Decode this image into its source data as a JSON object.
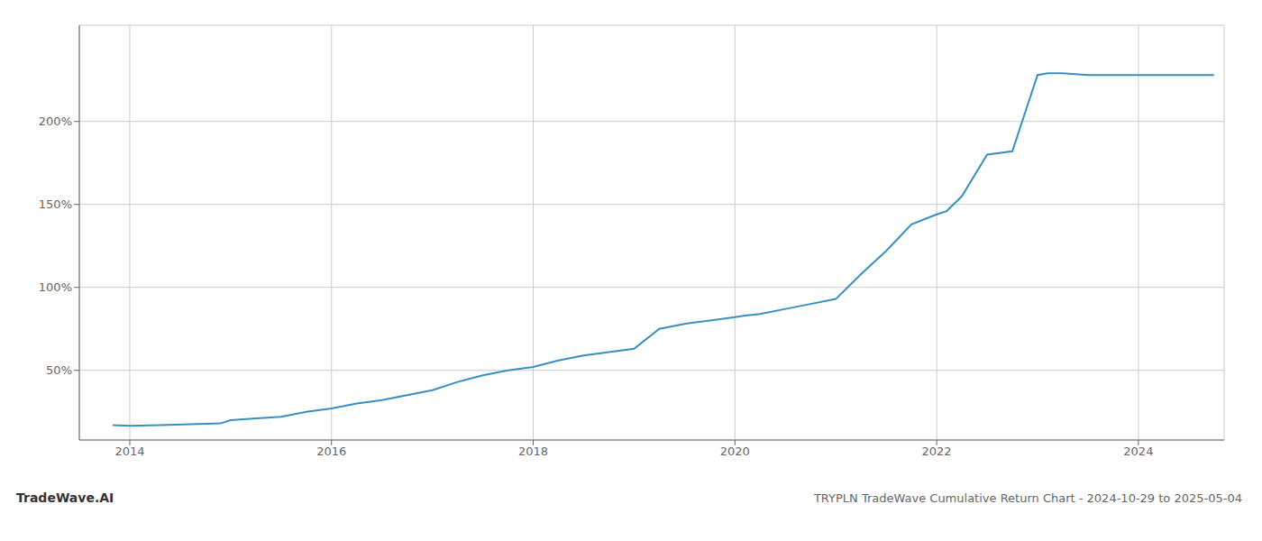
{
  "chart_data": {
    "type": "line",
    "title": "TRYPLN TradeWave Cumulative Return Chart - 2024-10-29 to 2025-05-04",
    "annotations": [
      "TradeWave.AI"
    ],
    "color": "#3a8fc0",
    "grid": true,
    "xlim": [
      2013.5,
      2024.85
    ],
    "ylim": [
      8,
      258
    ],
    "xticks": [
      2014,
      2016,
      2018,
      2020,
      2022,
      2024
    ],
    "yticks": [
      {
        "value": 50,
        "label": "50%"
      },
      {
        "value": 100,
        "label": "100%"
      },
      {
        "value": 150,
        "label": "150%"
      },
      {
        "value": 200,
        "label": "200%"
      }
    ],
    "x": [
      2013.83,
      2014.0,
      2014.3,
      2014.6,
      2014.9,
      2015.0,
      2015.25,
      2015.5,
      2015.75,
      2016.0,
      2016.25,
      2016.5,
      2016.75,
      2017.0,
      2017.25,
      2017.5,
      2017.75,
      2018.0,
      2018.25,
      2018.5,
      2018.75,
      2019.0,
      2019.25,
      2019.5,
      2019.75,
      2020.0,
      2020.1,
      2020.25,
      2020.5,
      2020.75,
      2021.0,
      2021.25,
      2021.5,
      2021.75,
      2022.0,
      2022.1,
      2022.25,
      2022.5,
      2022.75,
      2023.0,
      2023.1,
      2023.25,
      2023.5,
      2023.75,
      2024.0,
      2024.25,
      2024.5,
      2024.75
    ],
    "values": [
      17,
      16.5,
      17,
      17.5,
      18,
      20,
      21,
      22,
      25,
      27,
      30,
      32,
      35,
      38,
      43,
      47,
      50,
      52,
      56,
      59,
      61,
      63,
      75,
      78,
      80,
      82,
      83,
      84,
      87,
      90,
      93,
      108,
      122,
      138,
      144,
      146,
      155,
      180,
      182,
      228,
      229,
      229,
      228,
      228,
      228,
      228,
      228,
      228
    ]
  }
}
